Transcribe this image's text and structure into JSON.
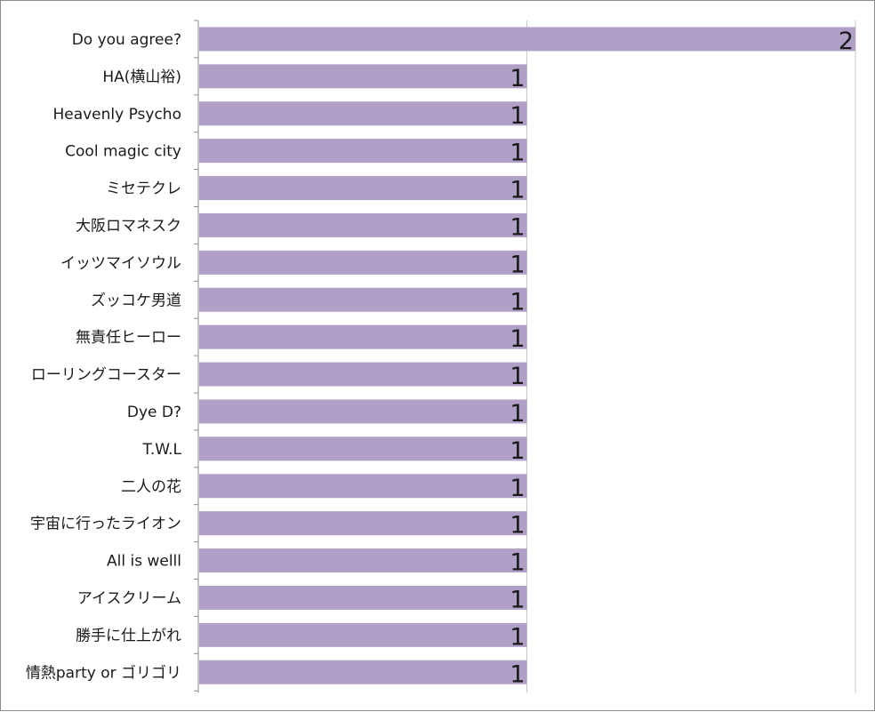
{
  "chart_data": {
    "type": "bar",
    "orientation": "horizontal",
    "categories": [
      "Do you agree?",
      "HA(横山裕)",
      "Heavenly Psycho",
      "Cool magic city",
      "ミセテクレ",
      "大阪ロマネスク",
      "イッツマイソウル",
      "ズッコケ男道",
      "無責任ヒーロー",
      "ローリングコースター",
      "Dye D?",
      "T.W.L",
      "二人の花",
      "宇宙に行ったライオン",
      "All is welll",
      "アイスクリーム",
      "勝手に仕上がれ",
      "情熱party or ゴリゴリ"
    ],
    "values": [
      2,
      1,
      1,
      1,
      1,
      1,
      1,
      1,
      1,
      1,
      1,
      1,
      1,
      1,
      1,
      1,
      1,
      1
    ],
    "data_labels": [
      "2",
      "1",
      "1",
      "1",
      "1",
      "1",
      "1",
      "1",
      "1",
      "1",
      "1",
      "1",
      "1",
      "1",
      "1",
      "1",
      "1",
      "1"
    ],
    "xlim": [
      0,
      2
    ],
    "grid": true,
    "legend": "none",
    "bar_color": "#b0a0c8"
  }
}
